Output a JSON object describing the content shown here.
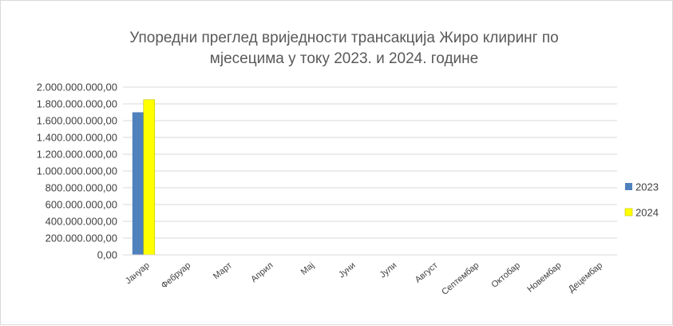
{
  "chart_data": {
    "type": "bar",
    "title_lines": [
      "Упоредни преглед вриједности трансакција Жиро клиринг по",
      "мјесецима у току 2023. и 2024. године"
    ],
    "categories": [
      "Јануар",
      "Фебруар",
      "Март",
      "Април",
      "Мај",
      "Јуни",
      "Јули",
      "Август",
      "Септембар",
      "Октобар",
      "Новембар",
      "Децембар"
    ],
    "series": [
      {
        "name": "2023",
        "color": "#4f81bd",
        "values": [
          1700000000,
          null,
          null,
          null,
          null,
          null,
          null,
          null,
          null,
          null,
          null,
          null
        ]
      },
      {
        "name": "2024",
        "color": "#ffff00",
        "values": [
          1850000000,
          null,
          null,
          null,
          null,
          null,
          null,
          null,
          null,
          null,
          null,
          null
        ]
      }
    ],
    "ylim": [
      0,
      2000000000
    ],
    "y_ticks": [
      0,
      200000000,
      400000000,
      600000000,
      800000000,
      1000000000,
      1200000000,
      1400000000,
      1600000000,
      1800000000,
      2000000000
    ],
    "y_tick_labels": [
      "0,00",
      "200.000.000,00",
      "400.000.000,00",
      "600.000.000,00",
      "800.000.000,00",
      "1.000.000.000,00",
      "1.200.000.000,00",
      "1.400.000.000,00",
      "1.600.000.000,00",
      "1.800.000.000,00",
      "2.000.000.000,00"
    ],
    "grid": true,
    "legend_position": "right",
    "xlabel": "",
    "ylabel": ""
  }
}
